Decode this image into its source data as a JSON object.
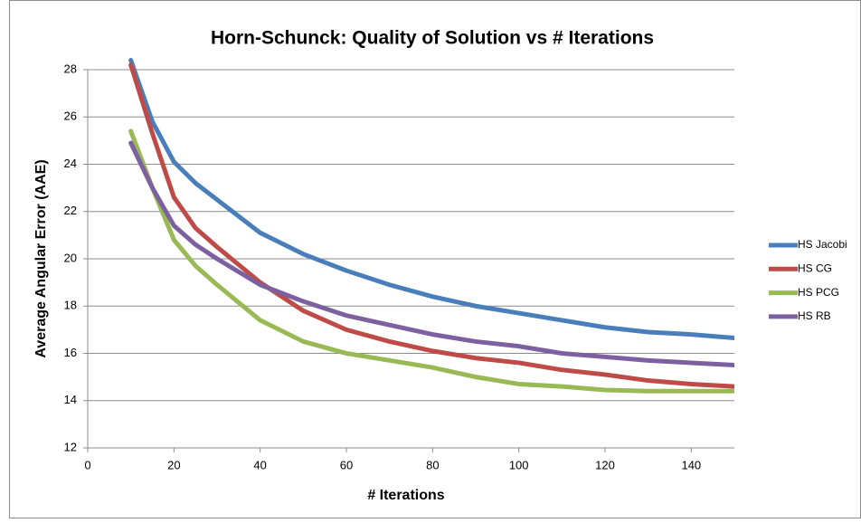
{
  "chart_data": {
    "type": "line",
    "title": "Horn-Schunck: Quality of Solution vs # Iterations",
    "x_label": "# Iterations",
    "y_label": "Average Angular Error (AAE)",
    "x": [
      10,
      15,
      20,
      25,
      30,
      40,
      50,
      60,
      70,
      80,
      90,
      100,
      110,
      120,
      130,
      140,
      150
    ],
    "series": [
      {
        "name": "HS Jacobi",
        "color": "#4a7ebb",
        "values": [
          28.4,
          25.8,
          24.1,
          23.2,
          22.5,
          21.1,
          20.2,
          19.5,
          18.9,
          18.4,
          18.0,
          17.7,
          17.4,
          17.1,
          16.9,
          16.8,
          16.65
        ]
      },
      {
        "name": "HS CG",
        "color": "#be4b48",
        "values": [
          28.2,
          25.3,
          22.6,
          21.3,
          20.5,
          19.0,
          17.8,
          17.0,
          16.5,
          16.1,
          15.8,
          15.6,
          15.3,
          15.1,
          14.85,
          14.7,
          14.6
        ]
      },
      {
        "name": "HS PCG",
        "color": "#98b954",
        "values": [
          25.4,
          23.0,
          20.8,
          19.7,
          18.9,
          17.4,
          16.5,
          16.0,
          15.7,
          15.4,
          15.0,
          14.7,
          14.6,
          14.45,
          14.4,
          14.4,
          14.4
        ]
      },
      {
        "name": "HS RB",
        "color": "#7d60a0",
        "values": [
          24.9,
          23.0,
          21.4,
          20.6,
          20.0,
          18.9,
          18.2,
          17.6,
          17.2,
          16.8,
          16.5,
          16.3,
          16.0,
          15.85,
          15.7,
          15.6,
          15.5
        ]
      }
    ],
    "xlim": [
      0,
      150
    ],
    "xticks": [
      0,
      20,
      40,
      60,
      80,
      100,
      120,
      140
    ],
    "ylim": [
      12,
      28
    ],
    "yticks": [
      12,
      14,
      16,
      18,
      20,
      22,
      24,
      26,
      28
    ],
    "grid": true,
    "legend": "right"
  }
}
